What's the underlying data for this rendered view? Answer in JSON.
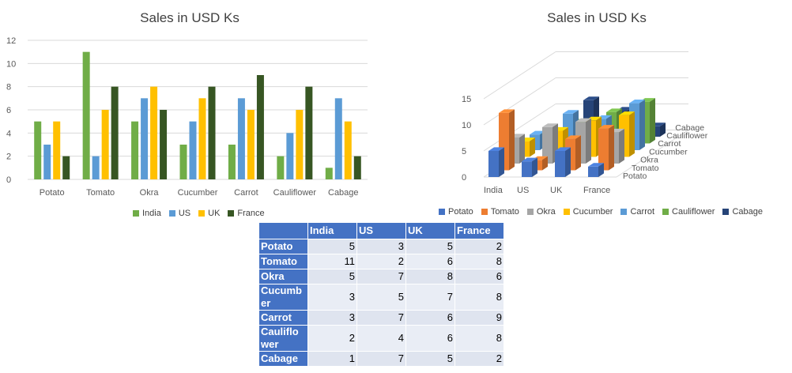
{
  "chart_data": [
    {
      "type": "bar",
      "title": "Sales in USD Ks",
      "categories": [
        "Potato",
        "Tomato",
        "Okra",
        "Cucumber",
        "Carrot",
        "Cauliflower",
        "Cabage"
      ],
      "series": [
        {
          "name": "India",
          "values": [
            5,
            11,
            5,
            3,
            3,
            2,
            1
          ],
          "color": "#70ad47"
        },
        {
          "name": "US",
          "values": [
            3,
            2,
            7,
            5,
            7,
            4,
            7
          ],
          "color": "#5b9bd5"
        },
        {
          "name": "UK",
          "values": [
            5,
            6,
            8,
            7,
            6,
            6,
            5
          ],
          "color": "#ffc000"
        },
        {
          "name": "France",
          "values": [
            2,
            8,
            6,
            8,
            9,
            8,
            2
          ],
          "color": "#375623"
        }
      ],
      "ylim": [
        0,
        12
      ],
      "yticks": [
        0,
        2,
        4,
        6,
        8,
        10,
        12
      ],
      "grid": true,
      "legend": "bottom"
    },
    {
      "type": "bar",
      "style": "3d",
      "title": "Sales in USD Ks",
      "categories": [
        "India",
        "US",
        "UK",
        "France"
      ],
      "series": [
        {
          "name": "Potato",
          "values": [
            5,
            3,
            5,
            2
          ],
          "color": "#4472c4"
        },
        {
          "name": "Tomato",
          "values": [
            11,
            2,
            6,
            8
          ],
          "color": "#ed7d31"
        },
        {
          "name": "Okra",
          "values": [
            5,
            7,
            8,
            6
          ],
          "color": "#a5a5a5"
        },
        {
          "name": "Cucumber",
          "values": [
            3,
            5,
            7,
            8
          ],
          "color": "#ffc000"
        },
        {
          "name": "Carrot",
          "values": [
            3,
            7,
            6,
            9
          ],
          "color": "#5b9bd5"
        },
        {
          "name": "Cauliflower",
          "values": [
            2,
            4,
            6,
            8
          ],
          "color": "#70ad47"
        },
        {
          "name": "Cabage",
          "values": [
            1,
            7,
            5,
            2
          ],
          "color": "#264478"
        }
      ],
      "ylim": [
        0,
        15
      ],
      "yticks": [
        0,
        5,
        10,
        15
      ],
      "grid": true,
      "legend": "bottom"
    },
    {
      "type": "table",
      "columns": [
        "",
        "India",
        "US",
        "UK",
        "France"
      ],
      "rows": [
        {
          "label": "Potato",
          "values": [
            5,
            3,
            5,
            2
          ]
        },
        {
          "label": "Tomato",
          "values": [
            11,
            2,
            6,
            8
          ]
        },
        {
          "label": "Okra",
          "values": [
            5,
            7,
            8,
            6
          ]
        },
        {
          "label": "Cucumber",
          "values": [
            3,
            5,
            7,
            8
          ]
        },
        {
          "label": "Carrot",
          "values": [
            3,
            7,
            6,
            9
          ]
        },
        {
          "label": "Cauliflower",
          "values": [
            2,
            4,
            6,
            8
          ]
        },
        {
          "label": "Cabage",
          "values": [
            1,
            7,
            5,
            2
          ]
        }
      ]
    }
  ]
}
